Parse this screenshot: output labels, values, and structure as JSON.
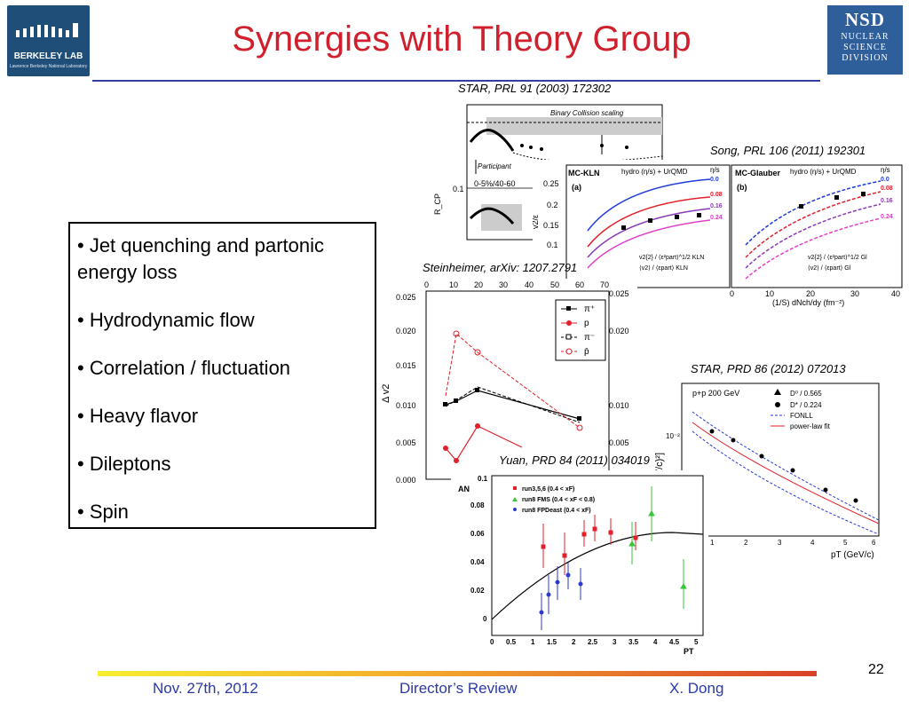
{
  "title": "Synergies with Theory Group",
  "logos": {
    "left": {
      "name": "BERKELEY LAB",
      "sub": "Lawrence Berkeley National Laboratory"
    },
    "right": {
      "name": "NSD",
      "lines": [
        "NUCLEAR",
        "SCIENCE",
        "DIVISION"
      ]
    }
  },
  "bullets": [
    "• Jet quenching and partonic energy loss",
    "• Hydrodynamic flow",
    "• Correlation / fluctuation",
    "• Heavy flavor",
    "• Dileptons",
    "• Spin"
  ],
  "citations": {
    "star_rcp": "STAR, PRL 91 (2003) 172302",
    "song": "Song, PRL 106 (2011) 192301",
    "steinheimer": "Steinheimer, arXiv: 1207.2791",
    "star_prd": "STAR, PRD 86 (2012) 072013",
    "yuan": "Yuan, PRD 84 (2011) 034019"
  },
  "figure_text": {
    "rcp": {
      "banner": "Binary Collision scaling",
      "participant": "Participant",
      "centrality": "0-5%/40-60",
      "ylabel": "R_CP",
      "ytick": "0.1"
    },
    "song": {
      "left_label": "MC-KLN",
      "right_label": "MC-Glauber",
      "model": "hydro (η/s) + UrQMD",
      "etas_header": "η/s",
      "etas": [
        "0.0",
        "0.08",
        "0.16",
        "0.24"
      ],
      "panel_a": "(a)",
      "panel_b": "(b)",
      "legend_a": [
        "v2{2} / ⟨ε²part⟩^1/2 KLN",
        "⟨v2⟩ / ⟨εpart⟩ KLN"
      ],
      "legend_b": [
        "v2{2} / ⟨ε²part⟩^1/2 Gl",
        "⟨v2⟩ / ⟨εpart⟩ Gl"
      ],
      "yticks": [
        "0.25",
        "0.2",
        "0.15",
        "0.1"
      ],
      "xtitle": "(1/S) dNch/dy (fm⁻²)",
      "xticks_b": [
        "0",
        "10",
        "20",
        "30",
        "40"
      ],
      "ylabel": "v2/ε"
    },
    "steinheimer": {
      "ylabel": "Δ v2",
      "yticks": [
        "0.025",
        "0.020",
        "0.015",
        "0.010",
        "0.005",
        "0.000"
      ],
      "xticks": [
        "0",
        "10",
        "20",
        "30",
        "40",
        "50",
        "60",
        "70"
      ],
      "legend": [
        "π⁺",
        "p",
        "π⁻",
        "p̄"
      ]
    },
    "star_prd": {
      "system": "p+p 200 GeV",
      "legend": [
        "D⁰ / 0.565",
        "D* / 0.224",
        "FONLL",
        "power-law fit"
      ],
      "ylabel": "[mb/(GeV/c)²]",
      "xlabel": "pT (GeV/c)",
      "ytick": "10⁻²",
      "xticks": [
        "1",
        "2",
        "3",
        "4",
        "5",
        "6"
      ]
    },
    "yuan": {
      "ylabel": "AN",
      "xlabel": "PT",
      "legend": [
        "run3,5,6 (0.4 < xF)",
        "run8 FMS (0.4 < xF < 0.8)",
        "run8 FPDeast (0.4 < xF)"
      ],
      "yticks": [
        "0.1",
        "0.08",
        "0.06",
        "0.04",
        "0.02",
        "0"
      ],
      "xticks": [
        "0",
        "0.5",
        "1",
        "1.5",
        "2",
        "2.5",
        "3",
        "3.5",
        "4",
        "4.5",
        "5"
      ]
    }
  },
  "footer": {
    "date": "Nov. 27th, 2012",
    "event": "Director’s Review",
    "author": "X. Dong",
    "page": "22"
  },
  "colors": {
    "title": "#d0202e",
    "footer_text": "#2b3aa2",
    "rule": "#3340a0"
  }
}
